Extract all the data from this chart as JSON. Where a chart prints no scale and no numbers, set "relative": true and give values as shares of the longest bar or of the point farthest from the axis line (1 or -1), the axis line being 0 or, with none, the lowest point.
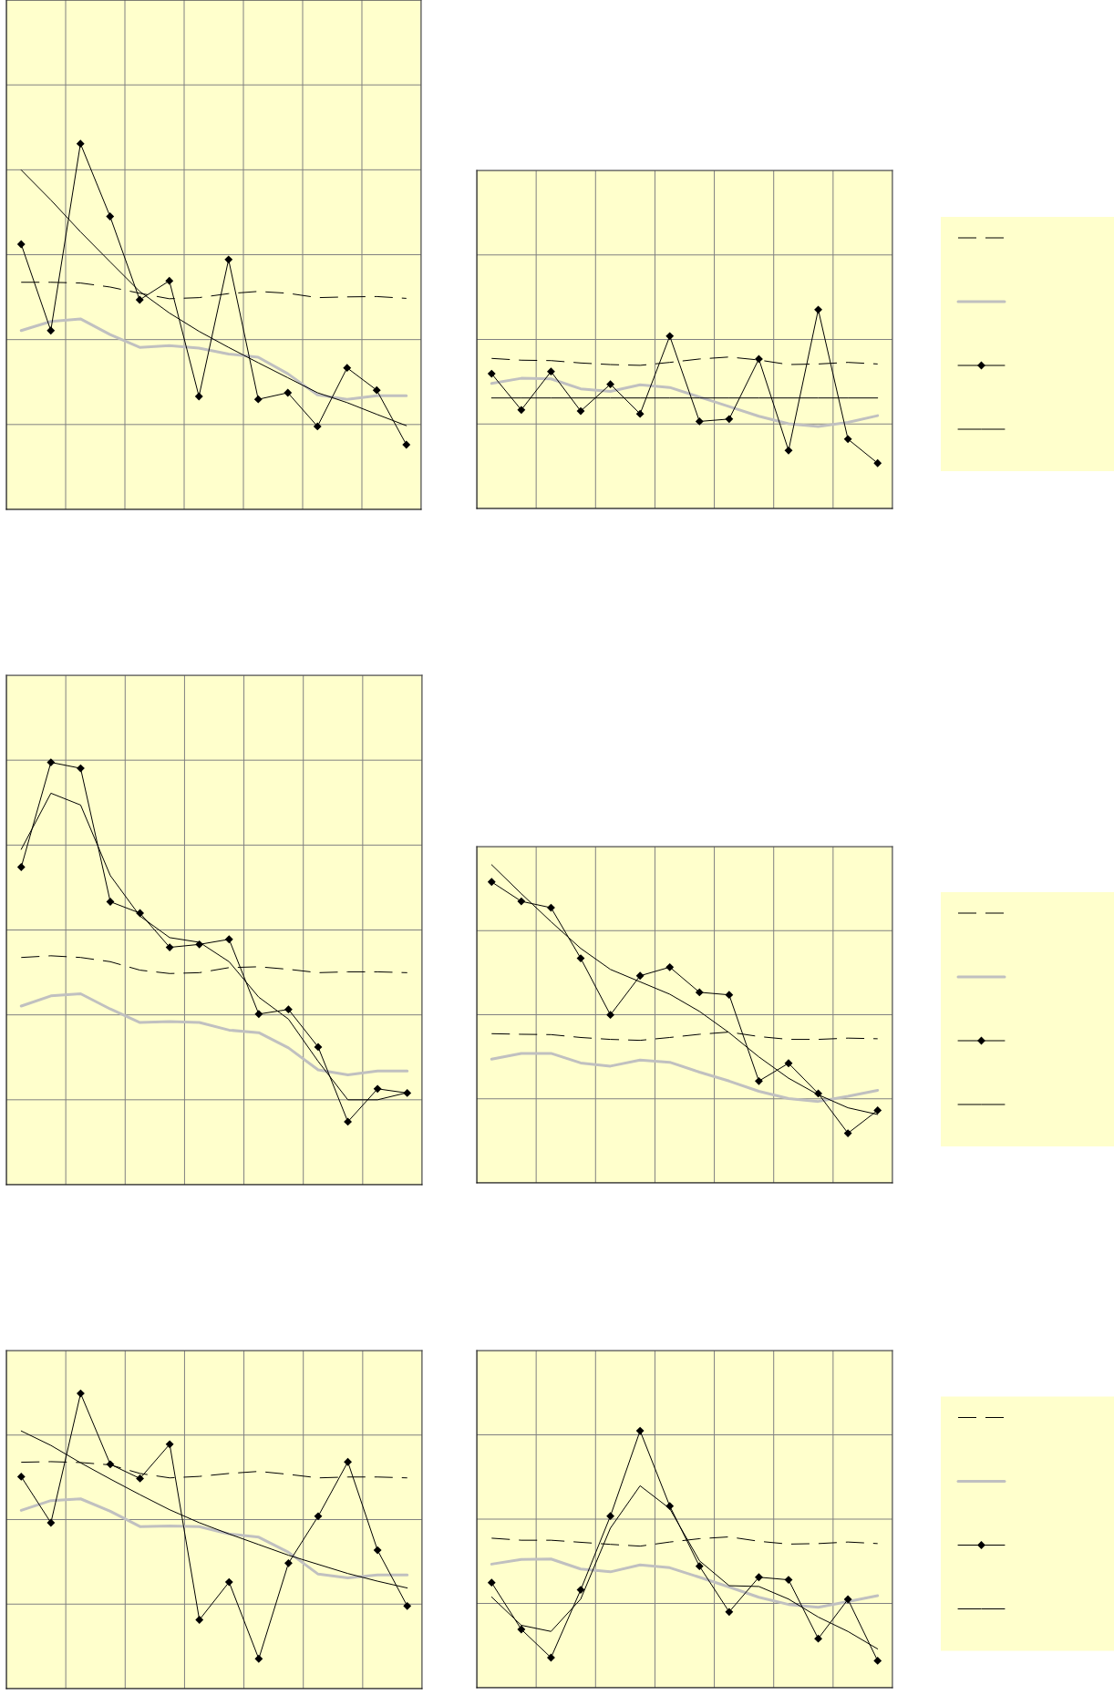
{
  "chart_data": [
    {
      "type": "line",
      "relative": true,
      "grid": true,
      "tick_labels": false,
      "categories": [
        null,
        null,
        null,
        null,
        null,
        null,
        null,
        null,
        null,
        null,
        null,
        null,
        null,
        null
      ],
      "series": [
        {
          "color": "#000000",
          "line_style": "dashed",
          "values": [
            0.621,
            0.621,
            0.619,
            0.608,
            0.591,
            0.576,
            0.579,
            0.59,
            0.596,
            0.591,
            0.579,
            0.581,
            0.582,
            0.577
          ]
        },
        {
          "color": "#c0c0c0",
          "values": [
            0.489,
            0.514,
            0.521,
            0.478,
            0.443,
            0.448,
            0.441,
            0.425,
            0.416,
            0.371,
            0.313,
            0.301,
            0.311,
            0.311
          ]
        },
        {
          "color": "#000000",
          "marker": "diamond",
          "values": [
            0.725,
            0.489,
            1.0,
            0.801,
            0.573,
            0.625,
            0.309,
            0.683,
            0.301,
            0.319,
            0.227,
            0.387,
            0.326,
            0.177
          ]
        },
        {
          "color": "#000000",
          "values": [
            0.928,
            0.846,
            0.759,
            0.677,
            0.596,
            0.537,
            0.487,
            0.443,
            0.401,
            0.36,
            0.319,
            0.292,
            0.26,
            0.229
          ]
        }
      ]
    },
    {
      "type": "line",
      "relative": true,
      "grid": true,
      "tick_labels": false,
      "categories": [
        null,
        null,
        null,
        null,
        null,
        null,
        null,
        null,
        null,
        null,
        null,
        null,
        null,
        null
      ],
      "series": [
        {
          "color": "#000000",
          "line_style": "dashed",
          "values": [
            0.755,
            0.746,
            0.744,
            0.732,
            0.724,
            0.72,
            0.735,
            0.752,
            0.762,
            0.747,
            0.724,
            0.727,
            0.735,
            0.727
          ]
        },
        {
          "color": "#c0c0c0",
          "values": [
            0.629,
            0.655,
            0.652,
            0.602,
            0.589,
            0.622,
            0.609,
            0.561,
            0.513,
            0.464,
            0.426,
            0.413,
            0.433,
            0.467
          ]
        },
        {
          "color": "#000000",
          "marker": "diamond",
          "values": [
            0.678,
            0.496,
            0.689,
            0.49,
            0.625,
            0.476,
            0.867,
            0.438,
            0.45,
            0.752,
            0.292,
            1.0,
            0.349,
            0.228
          ]
        },
        {
          "color": "#000000",
          "values": [
            0.556,
            0.556,
            0.556,
            0.556,
            0.556,
            0.556,
            0.556,
            0.556,
            0.556,
            0.556,
            0.556,
            0.556,
            0.556,
            0.556
          ]
        }
      ]
    },
    {
      "type": "line",
      "relative": true,
      "grid": true,
      "tick_labels": false,
      "categories": [
        null,
        null,
        null,
        null,
        null,
        null,
        null,
        null,
        null,
        null,
        null,
        null,
        null,
        null
      ],
      "series": [
        {
          "color": "#000000",
          "line_style": "dashed",
          "values": [
            0.538,
            0.542,
            0.538,
            0.528,
            0.508,
            0.5,
            0.502,
            0.514,
            0.516,
            0.51,
            0.502,
            0.504,
            0.504,
            0.502
          ]
        },
        {
          "color": "#c0c0c0",
          "values": [
            0.423,
            0.447,
            0.452,
            0.416,
            0.384,
            0.386,
            0.384,
            0.366,
            0.36,
            0.324,
            0.272,
            0.26,
            0.269,
            0.269
          ]
        },
        {
          "color": "#000000",
          "marker": "diamond",
          "values": [
            0.752,
            1.0,
            0.986,
            0.67,
            0.643,
            0.562,
            0.569,
            0.581,
            0.404,
            0.415,
            0.326,
            0.149,
            0.227,
            0.217
          ]
        },
        {
          "color": "#000000",
          "values": [
            0.794,
            0.927,
            0.899,
            0.732,
            0.636,
            0.585,
            0.574,
            0.528,
            0.444,
            0.392,
            0.292,
            0.201,
            0.201,
            0.218
          ]
        }
      ]
    },
    {
      "type": "line",
      "relative": true,
      "grid": true,
      "tick_labels": false,
      "categories": [
        null,
        null,
        null,
        null,
        null,
        null,
        null,
        null,
        null,
        null,
        null,
        null,
        null,
        null
      ],
      "series": [
        {
          "color": "#000000",
          "line_style": "dashed",
          "values": [
            0.469,
            0.467,
            0.466,
            0.457,
            0.451,
            0.448,
            0.457,
            0.467,
            0.474,
            0.46,
            0.451,
            0.451,
            0.455,
            0.453
          ]
        },
        {
          "color": "#c0c0c0",
          "values": [
            0.389,
            0.407,
            0.407,
            0.377,
            0.367,
            0.386,
            0.379,
            0.348,
            0.32,
            0.288,
            0.265,
            0.256,
            0.272,
            0.291
          ]
        },
        {
          "color": "#000000",
          "marker": "diamond",
          "values": [
            0.946,
            0.885,
            0.865,
            0.706,
            0.528,
            0.651,
            0.678,
            0.599,
            0.591,
            0.32,
            0.376,
            0.281,
            0.156,
            0.228
          ]
        },
        {
          "color": "#000000",
          "values": [
            1.0,
            0.909,
            0.821,
            0.737,
            0.671,
            0.632,
            0.593,
            0.539,
            0.472,
            0.396,
            0.329,
            0.277,
            0.236,
            0.215
          ]
        }
      ]
    },
    {
      "type": "line",
      "relative": true,
      "grid": true,
      "tick_labels": false,
      "categories": [
        null,
        null,
        null,
        null,
        null,
        null,
        null,
        null,
        null,
        null,
        null,
        null,
        null,
        null
      ],
      "series": [
        {
          "color": "#000000",
          "line_style": "dashed",
          "values": [
            0.767,
            0.769,
            0.766,
            0.758,
            0.729,
            0.714,
            0.719,
            0.729,
            0.736,
            0.726,
            0.714,
            0.717,
            0.717,
            0.714
          ]
        },
        {
          "color": "#c0c0c0",
          "values": [
            0.604,
            0.637,
            0.643,
            0.601,
            0.549,
            0.551,
            0.549,
            0.524,
            0.513,
            0.462,
            0.388,
            0.375,
            0.385,
            0.385
          ]
        },
        {
          "color": "#000000",
          "marker": "diamond",
          "values": [
            0.718,
            0.562,
            1.0,
            0.76,
            0.712,
            0.828,
            0.233,
            0.361,
            0.101,
            0.425,
            0.584,
            0.768,
            0.469,
            0.28
          ]
        },
        {
          "color": "#000000",
          "values": [
            0.873,
            0.824,
            0.765,
            0.71,
            0.657,
            0.606,
            0.562,
            0.524,
            0.488,
            0.452,
            0.421,
            0.39,
            0.364,
            0.341
          ]
        }
      ]
    },
    {
      "type": "line",
      "relative": true,
      "grid": true,
      "tick_labels": false,
      "categories": [
        null,
        null,
        null,
        null,
        null,
        null,
        null,
        null,
        null,
        null,
        null,
        null,
        null,
        null
      ],
      "series": [
        {
          "color": "#000000",
          "line_style": "dashed",
          "values": [
            0.582,
            0.574,
            0.574,
            0.566,
            0.558,
            0.551,
            0.567,
            0.58,
            0.587,
            0.57,
            0.559,
            0.561,
            0.567,
            0.561
          ]
        },
        {
          "color": "#c0c0c0",
          "values": [
            0.481,
            0.499,
            0.501,
            0.462,
            0.451,
            0.478,
            0.467,
            0.43,
            0.392,
            0.352,
            0.324,
            0.313,
            0.335,
            0.358
          ]
        },
        {
          "color": "#000000",
          "marker": "diamond",
          "values": [
            0.409,
            0.227,
            0.117,
            0.381,
            0.668,
            1.0,
            0.707,
            0.473,
            0.295,
            0.43,
            0.42,
            0.191,
            0.344,
            0.105
          ]
        },
        {
          "color": "#000000",
          "values": [
            0.353,
            0.243,
            0.219,
            0.345,
            0.621,
            0.786,
            0.697,
            0.494,
            0.397,
            0.394,
            0.345,
            0.275,
            0.219,
            0.151
          ]
        }
      ]
    }
  ]
}
